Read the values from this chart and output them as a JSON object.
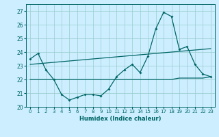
{
  "title": "",
  "xlabel": "Humidex (Indice chaleur)",
  "ylabel": "",
  "x_values": [
    0,
    1,
    2,
    3,
    4,
    5,
    6,
    7,
    8,
    9,
    10,
    11,
    12,
    13,
    14,
    15,
    16,
    17,
    18,
    19,
    20,
    21,
    22,
    23
  ],
  "line1_y": [
    23.5,
    23.9,
    22.7,
    22.0,
    20.9,
    20.5,
    20.7,
    20.9,
    20.9,
    20.8,
    21.3,
    22.2,
    22.7,
    23.1,
    22.5,
    23.7,
    25.7,
    26.9,
    26.6,
    24.2,
    24.4,
    23.1,
    22.4,
    22.2
  ],
  "line2_y": [
    22.0,
    22.0,
    22.0,
    22.0,
    22.0,
    22.0,
    22.0,
    22.0,
    22.0,
    22.0,
    22.0,
    22.0,
    22.0,
    22.0,
    22.0,
    22.0,
    22.0,
    22.0,
    22.0,
    22.1,
    22.1,
    22.1,
    22.1,
    22.2
  ],
  "line3_y": [
    23.1,
    23.15,
    23.2,
    23.25,
    23.3,
    23.35,
    23.4,
    23.45,
    23.5,
    23.55,
    23.6,
    23.65,
    23.7,
    23.75,
    23.8,
    23.85,
    23.9,
    23.95,
    24.0,
    24.05,
    24.1,
    24.15,
    24.2,
    24.25
  ],
  "line_color": "#006666",
  "bg_color": "#cceeff",
  "grid_color": "#99cccc",
  "ylim": [
    20,
    27.5
  ],
  "xlim": [
    -0.5,
    23.5
  ],
  "yticks": [
    20,
    21,
    22,
    23,
    24,
    25,
    26,
    27
  ],
  "xticks": [
    0,
    1,
    2,
    3,
    4,
    5,
    6,
    7,
    8,
    9,
    10,
    11,
    12,
    13,
    14,
    15,
    16,
    17,
    18,
    19,
    20,
    21,
    22,
    23
  ],
  "xtick_labels": [
    "0",
    "1",
    "2",
    "3",
    "4",
    "5",
    "6",
    "7",
    "8",
    "9",
    "10",
    "11",
    "12",
    "13",
    "14",
    "15",
    "16",
    "17",
    "18",
    "19",
    "20",
    "21",
    "22",
    "23"
  ]
}
